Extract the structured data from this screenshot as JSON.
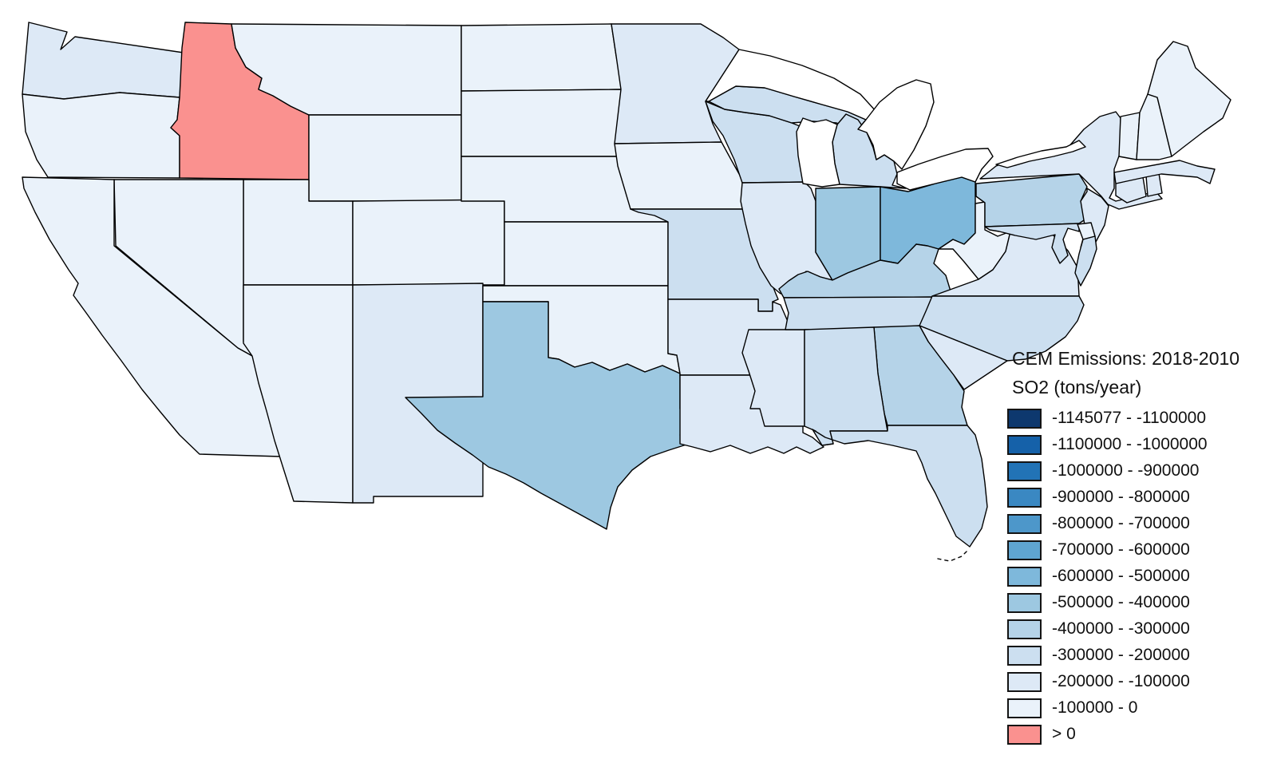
{
  "legend": {
    "title": "CEM Emissions: 2018-2010",
    "subtitle": "SO2 (tons/year)",
    "bins": [
      {
        "label": "-1145077 - -1100000",
        "color": "#0D386E"
      },
      {
        "label": "-1100000 - -1000000",
        "color": "#1561A9"
      },
      {
        "label": "-1000000 - -900000",
        "color": "#2273B6"
      },
      {
        "label": "-900000 - -800000",
        "color": "#3A88C2"
      },
      {
        "label": "-800000 - -700000",
        "color": "#4D97CA"
      },
      {
        "label": "-700000 - -600000",
        "color": "#5FA5D1"
      },
      {
        "label": "-600000 - -500000",
        "color": "#7EB8DB"
      },
      {
        "label": "-500000 - -400000",
        "color": "#9DC8E1"
      },
      {
        "label": "-400000 - -300000",
        "color": "#B5D3E8"
      },
      {
        "label": "-300000 - -200000",
        "color": "#CCDFF0"
      },
      {
        "label": "-200000 - -100000",
        "color": "#DDE9F6"
      },
      {
        "label": "-100000 - 0",
        "color": "#EAF2FA"
      },
      {
        "label": "> 0",
        "color": "#FA918F"
      }
    ]
  },
  "map": {
    "background": "#FFFFFF",
    "border_color": "#000000",
    "water_color": "#FFFFFF",
    "states": [
      {
        "id": "WA",
        "name": "Washington",
        "bin": 10
      },
      {
        "id": "OR",
        "name": "Oregon",
        "bin": 11
      },
      {
        "id": "CA",
        "name": "California",
        "bin": 11
      },
      {
        "id": "NV",
        "name": "Nevada",
        "bin": 11
      },
      {
        "id": "ID",
        "name": "Idaho",
        "bin": 12
      },
      {
        "id": "MT",
        "name": "Montana",
        "bin": 11
      },
      {
        "id": "WY",
        "name": "Wyoming",
        "bin": 11
      },
      {
        "id": "UT",
        "name": "Utah",
        "bin": 11
      },
      {
        "id": "AZ",
        "name": "Arizona",
        "bin": 11
      },
      {
        "id": "NM",
        "name": "New Mexico",
        "bin": 10
      },
      {
        "id": "CO",
        "name": "Colorado",
        "bin": 11
      },
      {
        "id": "ND",
        "name": "North Dakota",
        "bin": 11
      },
      {
        "id": "SD",
        "name": "South Dakota",
        "bin": 11
      },
      {
        "id": "NE",
        "name": "Nebraska",
        "bin": 11
      },
      {
        "id": "KS",
        "name": "Kansas",
        "bin": 11
      },
      {
        "id": "OK",
        "name": "Oklahoma",
        "bin": 11
      },
      {
        "id": "TX",
        "name": "Texas",
        "bin": 7
      },
      {
        "id": "MN",
        "name": "Minnesota",
        "bin": 10
      },
      {
        "id": "IA",
        "name": "Iowa",
        "bin": 11
      },
      {
        "id": "MO",
        "name": "Missouri",
        "bin": 9
      },
      {
        "id": "AR",
        "name": "Arkansas",
        "bin": 10
      },
      {
        "id": "LA",
        "name": "Louisiana",
        "bin": 10
      },
      {
        "id": "WI",
        "name": "Wisconsin",
        "bin": 9
      },
      {
        "id": "IL",
        "name": "Illinois",
        "bin": 10
      },
      {
        "id": "MS",
        "name": "Mississippi",
        "bin": 10
      },
      {
        "id": "MI",
        "name": "Michigan",
        "bin": 9
      },
      {
        "id": "IN",
        "name": "Indiana",
        "bin": 7
      },
      {
        "id": "OH",
        "name": "Ohio",
        "bin": 6
      },
      {
        "id": "KY",
        "name": "Kentucky",
        "bin": 8
      },
      {
        "id": "TN",
        "name": "Tennessee",
        "bin": 9
      },
      {
        "id": "AL",
        "name": "Alabama",
        "bin": 9
      },
      {
        "id": "GA",
        "name": "Georgia",
        "bin": 8
      },
      {
        "id": "FL",
        "name": "Florida",
        "bin": 9
      },
      {
        "id": "SC",
        "name": "South Carolina",
        "bin": 10
      },
      {
        "id": "NC",
        "name": "North Carolina",
        "bin": 9
      },
      {
        "id": "VA",
        "name": "Virginia",
        "bin": 10
      },
      {
        "id": "WV",
        "name": "West Virginia",
        "bin": 11
      },
      {
        "id": "PA",
        "name": "Pennsylvania",
        "bin": 8
      },
      {
        "id": "NY",
        "name": "New York",
        "bin": 10
      },
      {
        "id": "NJ",
        "name": "New Jersey",
        "bin": 10
      },
      {
        "id": "MD",
        "name": "Maryland",
        "bin": 9
      },
      {
        "id": "DE",
        "name": "Delaware",
        "bin": 11
      },
      {
        "id": "CT",
        "name": "Connecticut",
        "bin": 10
      },
      {
        "id": "RI",
        "name": "Rhode Island",
        "bin": 10
      },
      {
        "id": "MA",
        "name": "Massachusetts",
        "bin": 10
      },
      {
        "id": "VT",
        "name": "Vermont",
        "bin": 11
      },
      {
        "id": "NH",
        "name": "New Hampshire",
        "bin": 11
      },
      {
        "id": "ME",
        "name": "Maine",
        "bin": 11
      }
    ]
  }
}
